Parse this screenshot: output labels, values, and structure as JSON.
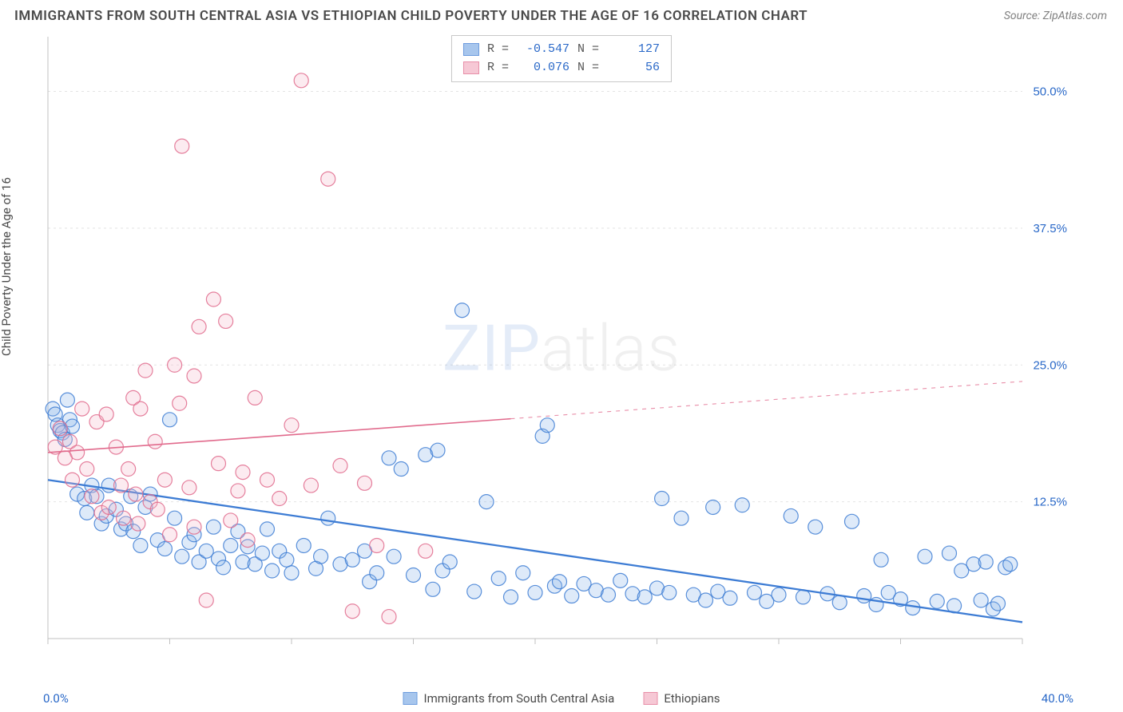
{
  "title": "IMMIGRANTS FROM SOUTH CENTRAL ASIA VS ETHIOPIAN CHILD POVERTY UNDER THE AGE OF 16 CORRELATION CHART",
  "source": "Source: ZipAtlas.com",
  "ylabel": "Child Poverty Under the Age of 16",
  "watermark_a": "ZIP",
  "watermark_b": "atlas",
  "chart": {
    "type": "scatter",
    "xlim": [
      0,
      40
    ],
    "ylim": [
      0,
      55
    ],
    "x_ticks_minor": [
      0,
      5,
      10,
      15,
      20,
      25,
      30,
      35,
      40
    ],
    "y_ticks": [
      12.5,
      25.0,
      37.5,
      50.0
    ],
    "y_tick_labels": [
      "12.5%",
      "25.0%",
      "37.5%",
      "50.0%"
    ],
    "x_tick_labels": [
      "0.0%",
      "40.0%"
    ],
    "background_color": "#ffffff",
    "grid_color": "#e4e4e4",
    "grid_dash": "3,4",
    "axis_color": "#c0c0c0",
    "tick_label_color": "#2968c8",
    "tick_label_fontsize": 15,
    "marker_radius": 9,
    "marker_stroke_width": 1.2,
    "marker_fill_opacity": 0.28,
    "series": [
      {
        "name": "Immigrants from South Central Asia",
        "key": "sca",
        "color_stroke": "#3d7cd4",
        "color_fill": "#8ab4e8",
        "R": "-0.547",
        "N": "127",
        "trend": {
          "x1": 0,
          "y1": 14.5,
          "x2": 40,
          "y2": 1.5,
          "solid_until_x": 40,
          "width": 2.3
        },
        "points": [
          [
            0.2,
            21
          ],
          [
            0.3,
            20.5
          ],
          [
            0.4,
            19.5
          ],
          [
            0.5,
            19
          ],
          [
            0.6,
            18.8
          ],
          [
            0.7,
            18.2
          ],
          [
            0.8,
            21.8
          ],
          [
            0.9,
            20
          ],
          [
            1.0,
            19.4
          ],
          [
            1.2,
            13.2
          ],
          [
            1.5,
            12.8
          ],
          [
            1.6,
            11.5
          ],
          [
            1.8,
            14
          ],
          [
            2.0,
            13
          ],
          [
            2.2,
            10.5
          ],
          [
            2.4,
            11.2
          ],
          [
            2.5,
            14
          ],
          [
            2.8,
            11.8
          ],
          [
            3.0,
            10
          ],
          [
            3.2,
            10.5
          ],
          [
            3.4,
            13
          ],
          [
            3.5,
            9.8
          ],
          [
            3.8,
            8.5
          ],
          [
            4.0,
            12
          ],
          [
            4.2,
            13.2
          ],
          [
            4.5,
            9
          ],
          [
            4.8,
            8.2
          ],
          [
            5.0,
            20
          ],
          [
            5.2,
            11
          ],
          [
            5.5,
            7.5
          ],
          [
            5.8,
            8.8
          ],
          [
            6.0,
            9.5
          ],
          [
            6.2,
            7
          ],
          [
            6.5,
            8
          ],
          [
            6.8,
            10.2
          ],
          [
            7.0,
            7.3
          ],
          [
            7.2,
            6.5
          ],
          [
            7.5,
            8.5
          ],
          [
            7.8,
            9.8
          ],
          [
            8.0,
            7
          ],
          [
            8.2,
            8.4
          ],
          [
            8.5,
            6.8
          ],
          [
            8.8,
            7.8
          ],
          [
            9.0,
            10
          ],
          [
            9.2,
            6.2
          ],
          [
            9.5,
            8
          ],
          [
            9.8,
            7.2
          ],
          [
            10.0,
            6
          ],
          [
            10.5,
            8.5
          ],
          [
            11.0,
            6.4
          ],
          [
            11.2,
            7.5
          ],
          [
            11.5,
            11
          ],
          [
            12.0,
            6.8
          ],
          [
            12.5,
            7.2
          ],
          [
            13.0,
            8
          ],
          [
            13.2,
            5.2
          ],
          [
            13.5,
            6
          ],
          [
            14.0,
            16.5
          ],
          [
            14.2,
            7.5
          ],
          [
            14.5,
            15.5
          ],
          [
            15.0,
            5.8
          ],
          [
            15.5,
            16.8
          ],
          [
            15.8,
            4.5
          ],
          [
            16.0,
            17.2
          ],
          [
            16.2,
            6.2
          ],
          [
            16.5,
            7
          ],
          [
            17.0,
            30
          ],
          [
            17.5,
            4.3
          ],
          [
            18.0,
            12.5
          ],
          [
            18.5,
            5.5
          ],
          [
            19.0,
            3.8
          ],
          [
            19.5,
            6
          ],
          [
            20.0,
            4.2
          ],
          [
            20.3,
            18.5
          ],
          [
            20.5,
            19.5
          ],
          [
            20.8,
            4.8
          ],
          [
            21.0,
            5.2
          ],
          [
            21.5,
            3.9
          ],
          [
            22.0,
            5
          ],
          [
            22.5,
            4.4
          ],
          [
            23.0,
            4
          ],
          [
            23.5,
            5.3
          ],
          [
            24.0,
            4.1
          ],
          [
            24.5,
            3.8
          ],
          [
            25.0,
            4.6
          ],
          [
            25.2,
            12.8
          ],
          [
            25.5,
            4.2
          ],
          [
            26.0,
            11
          ],
          [
            26.5,
            4
          ],
          [
            27.0,
            3.5
          ],
          [
            27.3,
            12
          ],
          [
            27.5,
            4.3
          ],
          [
            28.0,
            3.7
          ],
          [
            28.5,
            12.2
          ],
          [
            29.0,
            4.2
          ],
          [
            29.5,
            3.4
          ],
          [
            30.0,
            4
          ],
          [
            30.5,
            11.2
          ],
          [
            31.0,
            3.8
          ],
          [
            31.5,
            10.2
          ],
          [
            32.0,
            4.1
          ],
          [
            32.5,
            3.3
          ],
          [
            33.0,
            10.7
          ],
          [
            33.5,
            3.9
          ],
          [
            34.0,
            3.1
          ],
          [
            34.2,
            7.2
          ],
          [
            34.5,
            4.2
          ],
          [
            35.0,
            3.6
          ],
          [
            35.5,
            2.8
          ],
          [
            36.0,
            7.5
          ],
          [
            36.5,
            3.4
          ],
          [
            37.0,
            7.8
          ],
          [
            37.2,
            3
          ],
          [
            37.5,
            6.2
          ],
          [
            38.0,
            6.8
          ],
          [
            38.3,
            3.5
          ],
          [
            38.5,
            7
          ],
          [
            38.8,
            2.7
          ],
          [
            39.0,
            3.2
          ],
          [
            39.3,
            6.5
          ],
          [
            39.5,
            6.8
          ]
        ]
      },
      {
        "name": "Ethiopians",
        "key": "eth",
        "color_stroke": "#e16a8c",
        "color_fill": "#f4b6c8",
        "R": "0.076",
        "N": "56",
        "trend": {
          "x1": 0,
          "y1": 17,
          "x2": 40,
          "y2": 23.5,
          "solid_until_x": 19,
          "width": 1.6
        },
        "points": [
          [
            0.3,
            17.5
          ],
          [
            0.5,
            19.2
          ],
          [
            0.7,
            16.5
          ],
          [
            0.9,
            18
          ],
          [
            1.0,
            14.5
          ],
          [
            1.2,
            17
          ],
          [
            1.4,
            21
          ],
          [
            1.6,
            15.5
          ],
          [
            1.8,
            13
          ],
          [
            2.0,
            19.8
          ],
          [
            2.2,
            11.5
          ],
          [
            2.4,
            20.5
          ],
          [
            2.5,
            12
          ],
          [
            2.8,
            17.5
          ],
          [
            3.0,
            14
          ],
          [
            3.1,
            11
          ],
          [
            3.3,
            15.5
          ],
          [
            3.5,
            22
          ],
          [
            3.6,
            13.2
          ],
          [
            3.7,
            10.5
          ],
          [
            3.8,
            21
          ],
          [
            4.0,
            24.5
          ],
          [
            4.2,
            12.5
          ],
          [
            4.4,
            18
          ],
          [
            4.5,
            11.8
          ],
          [
            4.8,
            14.5
          ],
          [
            5.0,
            9.5
          ],
          [
            5.2,
            25
          ],
          [
            5.4,
            21.5
          ],
          [
            5.5,
            45
          ],
          [
            5.8,
            13.8
          ],
          [
            6.0,
            24
          ],
          [
            6.0,
            10.2
          ],
          [
            6.2,
            28.5
          ],
          [
            6.5,
            3.5
          ],
          [
            6.8,
            31
          ],
          [
            7.0,
            16
          ],
          [
            7.3,
            29
          ],
          [
            7.5,
            10.8
          ],
          [
            7.8,
            13.5
          ],
          [
            8.0,
            15.2
          ],
          [
            8.2,
            9
          ],
          [
            8.5,
            22
          ],
          [
            9.0,
            14.5
          ],
          [
            9.5,
            12.8
          ],
          [
            10.0,
            19.5
          ],
          [
            10.4,
            51
          ],
          [
            10.8,
            14
          ],
          [
            11.5,
            42
          ],
          [
            12.0,
            15.8
          ],
          [
            12.5,
            2.5
          ],
          [
            13.0,
            14.2
          ],
          [
            13.5,
            8.5
          ],
          [
            14.0,
            2
          ],
          [
            15.5,
            8
          ]
        ]
      }
    ]
  },
  "legend_top": {
    "R_label": "R =",
    "N_label": "N ="
  },
  "bottom_legend": {
    "a": "Immigrants from South Central Asia",
    "b": "Ethiopians"
  }
}
